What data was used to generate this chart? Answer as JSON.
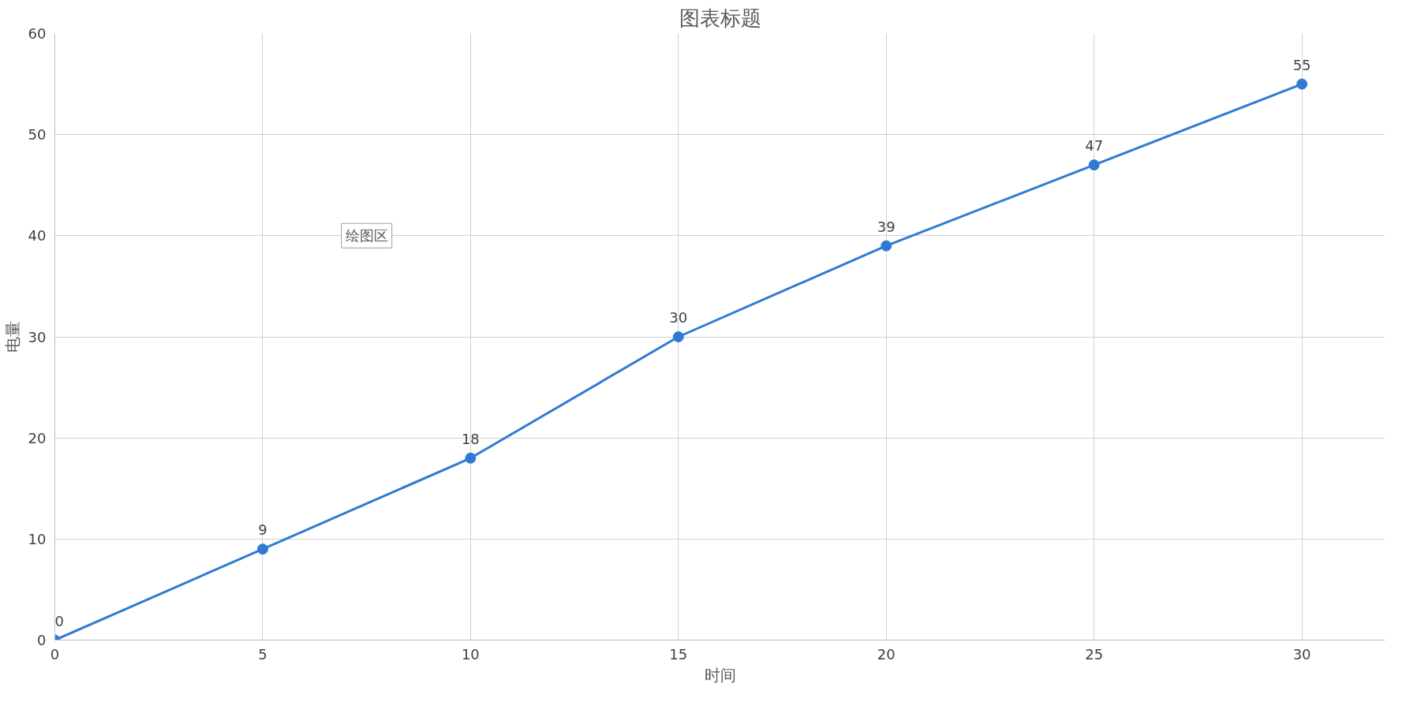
{
  "chart_data": {
    "type": "line",
    "title": "图表标题",
    "xlabel": "时间",
    "ylabel": "电量",
    "x": [
      0,
      5,
      10,
      15,
      20,
      25,
      30
    ],
    "series": [
      {
        "color": "#2f7ad3",
        "values": [
          0,
          9,
          18,
          30,
          39,
          47,
          55
        ]
      }
    ],
    "xlim": [
      0,
      32
    ],
    "xticks": [
      0,
      5,
      10,
      15,
      20,
      25,
      30
    ],
    "ylim": [
      0,
      60
    ],
    "yticks": [
      0,
      10,
      20,
      30,
      40,
      50,
      60
    ],
    "grid": true,
    "marker": "circle",
    "line_style": "solid",
    "data_labels": true,
    "annotations": [
      "绘图区"
    ]
  }
}
